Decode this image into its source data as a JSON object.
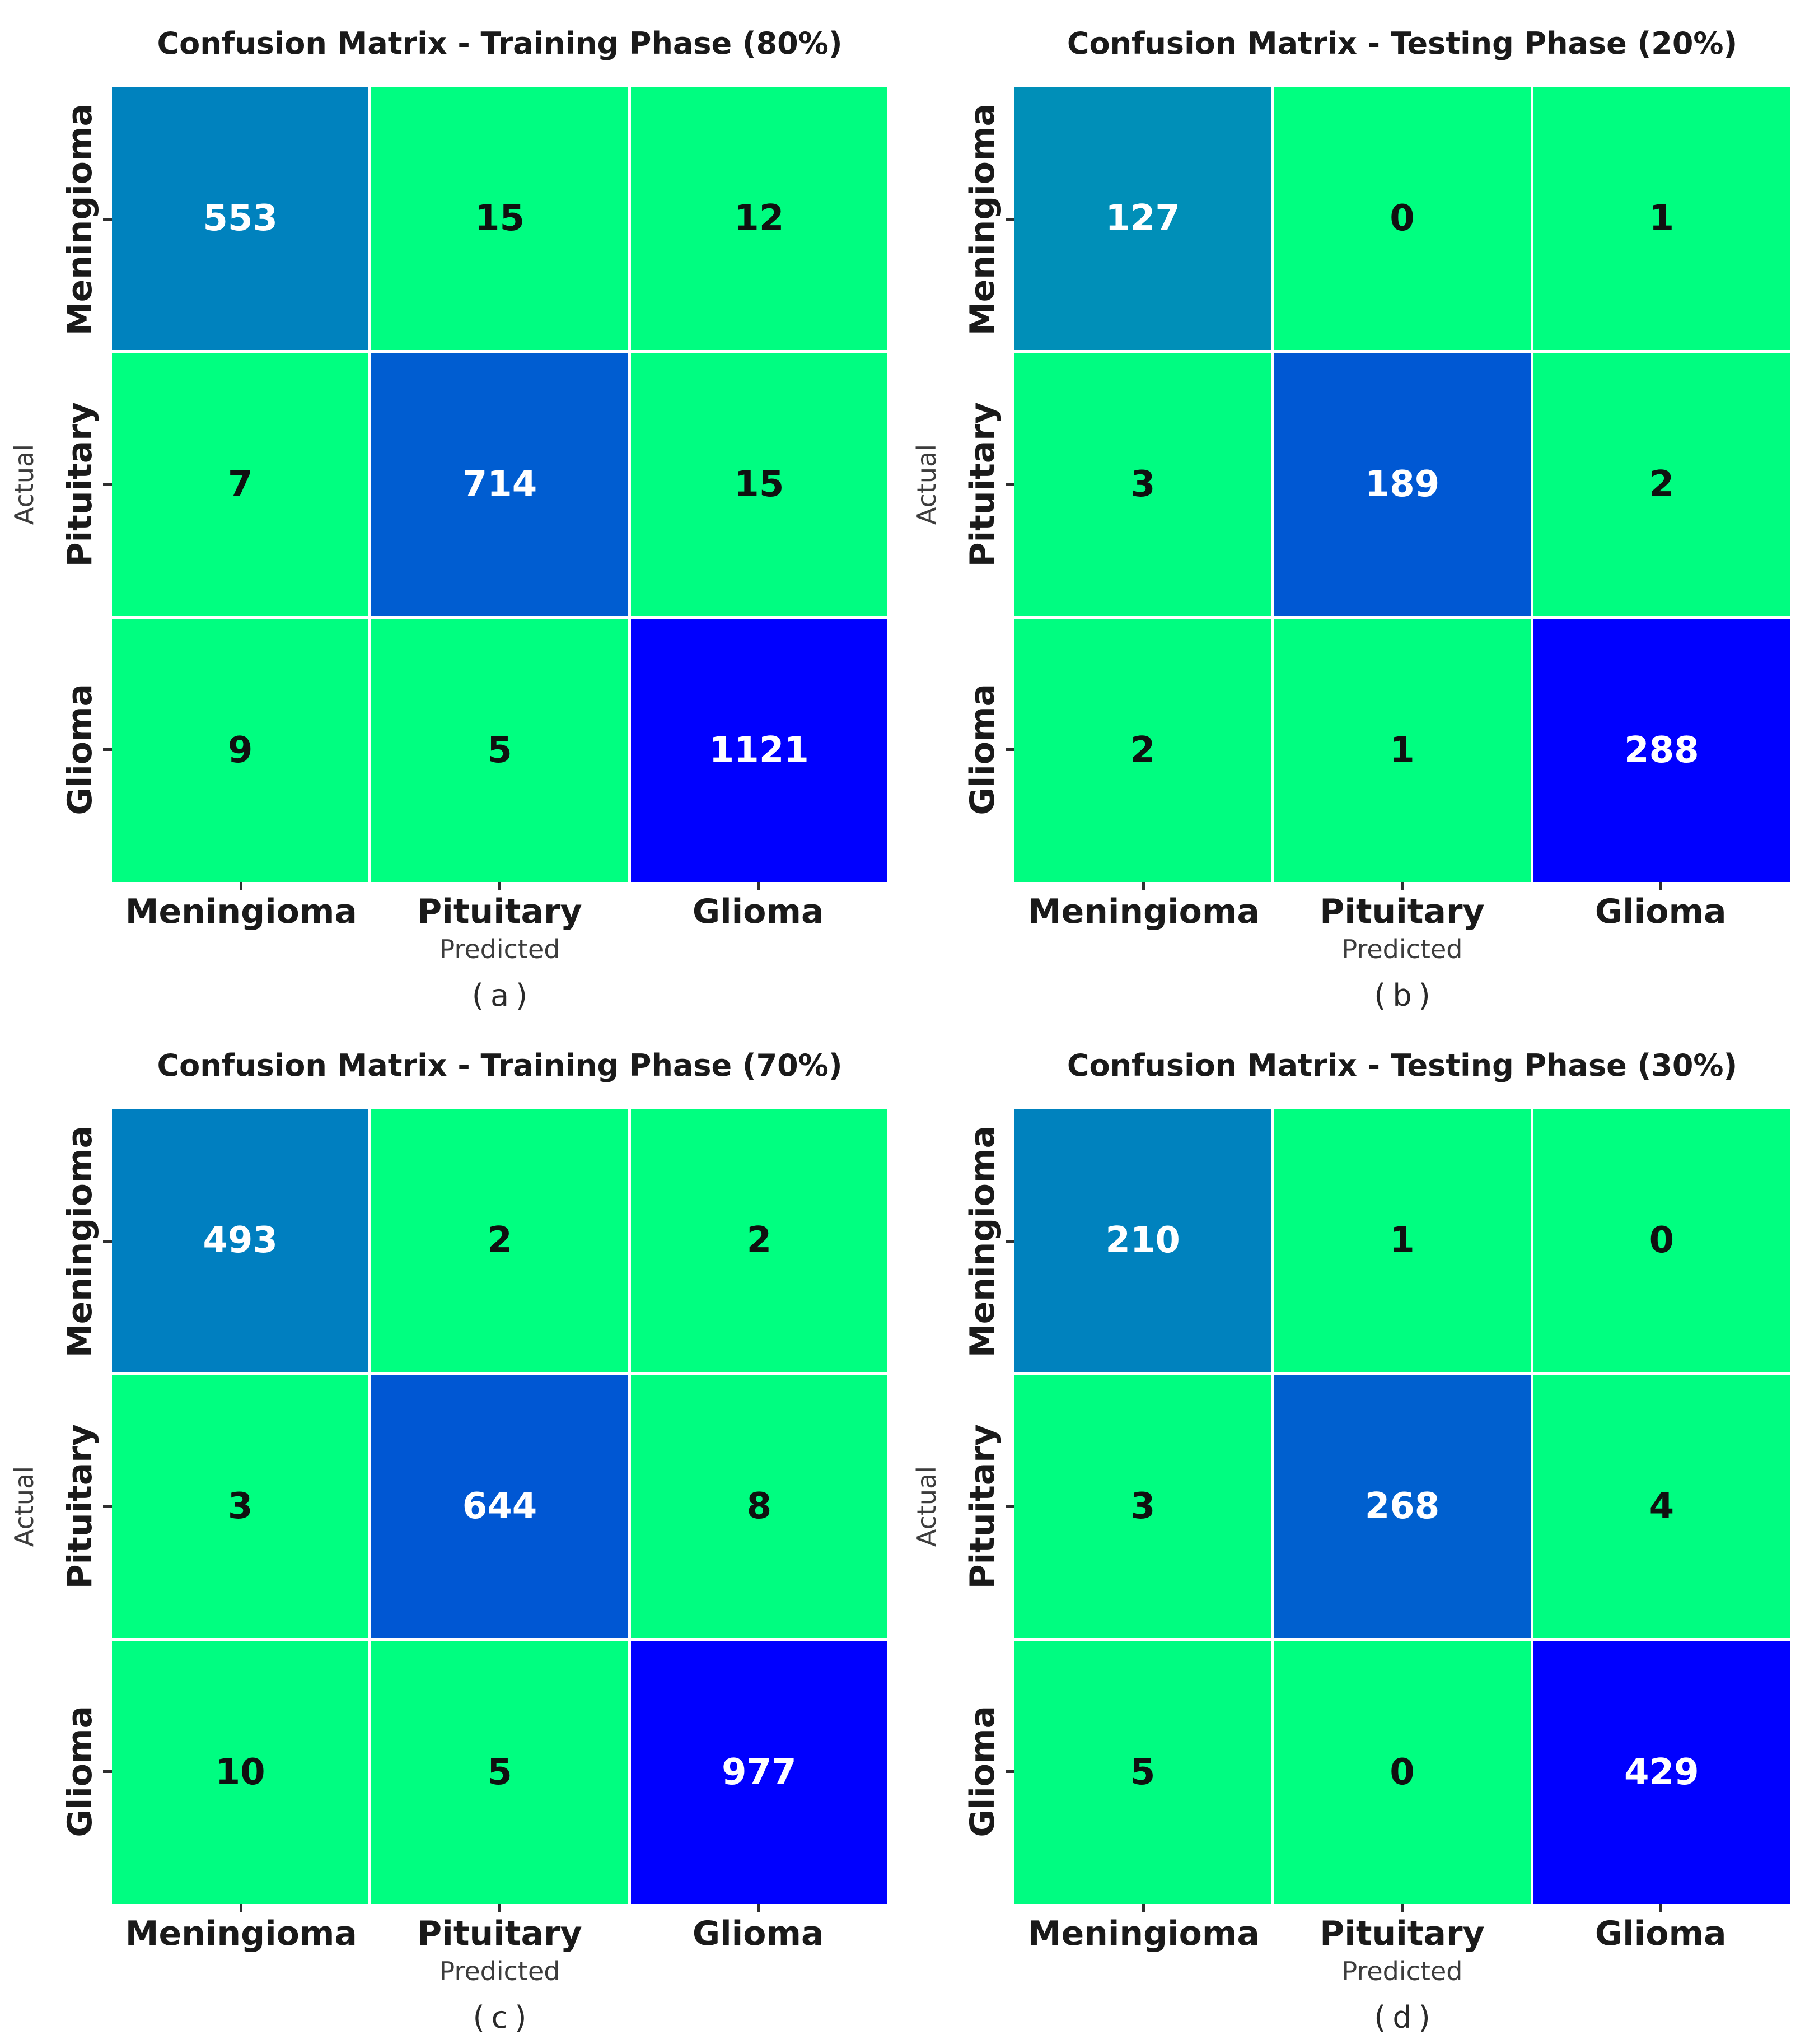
{
  "style": {
    "background": "#ffffff",
    "colormap": "winter_r",
    "color_low": "#00ff80",
    "color_high": "#0000ff",
    "diag_color_examples": [
      "#0082be",
      "#005dd1",
      "#0000ff"
    ],
    "title_color": "#1a1a1a",
    "tick_label_color": "#1a1a1a",
    "axis_label_color": "#3c3c3c",
    "tick_mark_color": "#2f2f2f",
    "cell_text_light": "#ffffff",
    "cell_text_dark": "#101010",
    "white_text_threshold": 0.4
  },
  "labels": {
    "actual": "Actual",
    "predicted": "Predicted",
    "classes": [
      "Meningioma",
      "Pituitary",
      "Glioma"
    ]
  },
  "chart_data": [
    {
      "type": "heatmap",
      "title": "Confusion Matrix - Training Phase (80%)",
      "caption": "(a)",
      "xlabel": "Predicted",
      "ylabel": "Actual",
      "x_categories": [
        "Meningioma",
        "Pituitary",
        "Glioma"
      ],
      "y_categories": [
        "Meningioma",
        "Pituitary",
        "Glioma"
      ],
      "values": [
        [
          553,
          15,
          12
        ],
        [
          7,
          714,
          15
        ],
        [
          9,
          5,
          1121
        ]
      ],
      "colormap": "winter_r",
      "legend": "none",
      "grid": "white 5px cell separators"
    },
    {
      "type": "heatmap",
      "title": "Confusion Matrix - Testing Phase (20%)",
      "caption": "(b)",
      "xlabel": "Predicted",
      "ylabel": "Actual",
      "x_categories": [
        "Meningioma",
        "Pituitary",
        "Glioma"
      ],
      "y_categories": [
        "Meningioma",
        "Pituitary",
        "Glioma"
      ],
      "values": [
        [
          127,
          0,
          1
        ],
        [
          3,
          189,
          2
        ],
        [
          2,
          1,
          288
        ]
      ],
      "colormap": "winter_r",
      "legend": "none",
      "grid": "white 5px cell separators"
    },
    {
      "type": "heatmap",
      "title": "Confusion Matrix - Training Phase (70%)",
      "caption": "(c)",
      "xlabel": "Predicted",
      "ylabel": "Actual",
      "x_categories": [
        "Meningioma",
        "Pituitary",
        "Glioma"
      ],
      "y_categories": [
        "Meningioma",
        "Pituitary",
        "Glioma"
      ],
      "values": [
        [
          493,
          2,
          2
        ],
        [
          3,
          644,
          8
        ],
        [
          10,
          5,
          977
        ]
      ],
      "colormap": "winter_r",
      "legend": "none",
      "grid": "white 5px cell separators"
    },
    {
      "type": "heatmap",
      "title": "Confusion Matrix - Testing Phase (30%)",
      "caption": "(d)",
      "xlabel": "Predicted",
      "ylabel": "Actual",
      "x_categories": [
        "Meningioma",
        "Pituitary",
        "Glioma"
      ],
      "y_categories": [
        "Meningioma",
        "Pituitary",
        "Glioma"
      ],
      "values": [
        [
          210,
          1,
          0
        ],
        [
          3,
          268,
          4
        ],
        [
          5,
          0,
          429
        ]
      ],
      "colormap": "winter_r",
      "legend": "none",
      "grid": "white 5px cell separators"
    }
  ]
}
